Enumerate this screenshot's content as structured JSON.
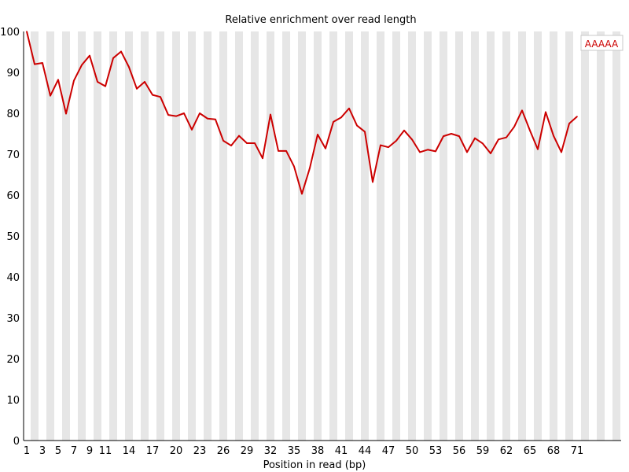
{
  "chart_data": {
    "type": "line",
    "title": "Relative enrichment over read length",
    "xlabel": "Position in read (bp)",
    "ylabel": "",
    "ylim": [
      0,
      100
    ],
    "yticks": [
      0,
      10,
      20,
      30,
      40,
      50,
      60,
      70,
      80,
      90,
      100
    ],
    "x_tick_labels": [
      "1",
      "3",
      "5",
      "7",
      "9",
      "11",
      "14",
      "17",
      "20",
      "23",
      "26",
      "29",
      "32",
      "35",
      "38",
      "41",
      "44",
      "47",
      "50",
      "53",
      "56",
      "59",
      "62",
      "65",
      "68",
      "71"
    ],
    "grid": "alternating vertical bands",
    "legend_position": "top-right",
    "series": [
      {
        "name": "AAAAA",
        "color": "#cc0000",
        "x": [
          1,
          2,
          3,
          4,
          5,
          6,
          7,
          8,
          9,
          10,
          11,
          12,
          13,
          14,
          15,
          16,
          17,
          18,
          19,
          20,
          21,
          22,
          23,
          24,
          25,
          26,
          27,
          28,
          29,
          30,
          31,
          32,
          33,
          34,
          35,
          36,
          37,
          38,
          39,
          40,
          41,
          42,
          43,
          44,
          45,
          46,
          47,
          48,
          49,
          50,
          51,
          52,
          53,
          54,
          55,
          56,
          57,
          58,
          59,
          60,
          61,
          62,
          63,
          64,
          65,
          66,
          67,
          68,
          69,
          70,
          71
        ],
        "values": [
          100.0,
          92.0,
          92.3,
          84.3,
          88.2,
          79.9,
          88.0,
          91.8,
          94.1,
          87.7,
          86.6,
          93.5,
          95.1,
          91.3,
          86.0,
          87.7,
          84.5,
          84.0,
          79.6,
          79.3,
          80.0,
          76.0,
          80.0,
          78.7,
          78.5,
          73.3,
          72.1,
          74.5,
          72.7,
          72.7,
          69.0,
          79.7,
          70.8,
          70.8,
          67.0,
          60.3,
          66.6,
          74.8,
          71.4,
          77.9,
          79.0,
          81.2,
          77.0,
          75.5,
          63.2,
          72.2,
          71.7,
          73.3,
          75.8,
          73.6,
          70.5,
          71.1,
          70.7,
          74.4,
          75.0,
          74.4,
          70.5,
          73.9,
          72.6,
          70.2,
          73.6,
          74.1,
          76.7,
          80.7,
          75.8,
          71.2,
          80.3,
          74.5,
          70.5,
          77.5,
          79.2
        ]
      }
    ]
  }
}
